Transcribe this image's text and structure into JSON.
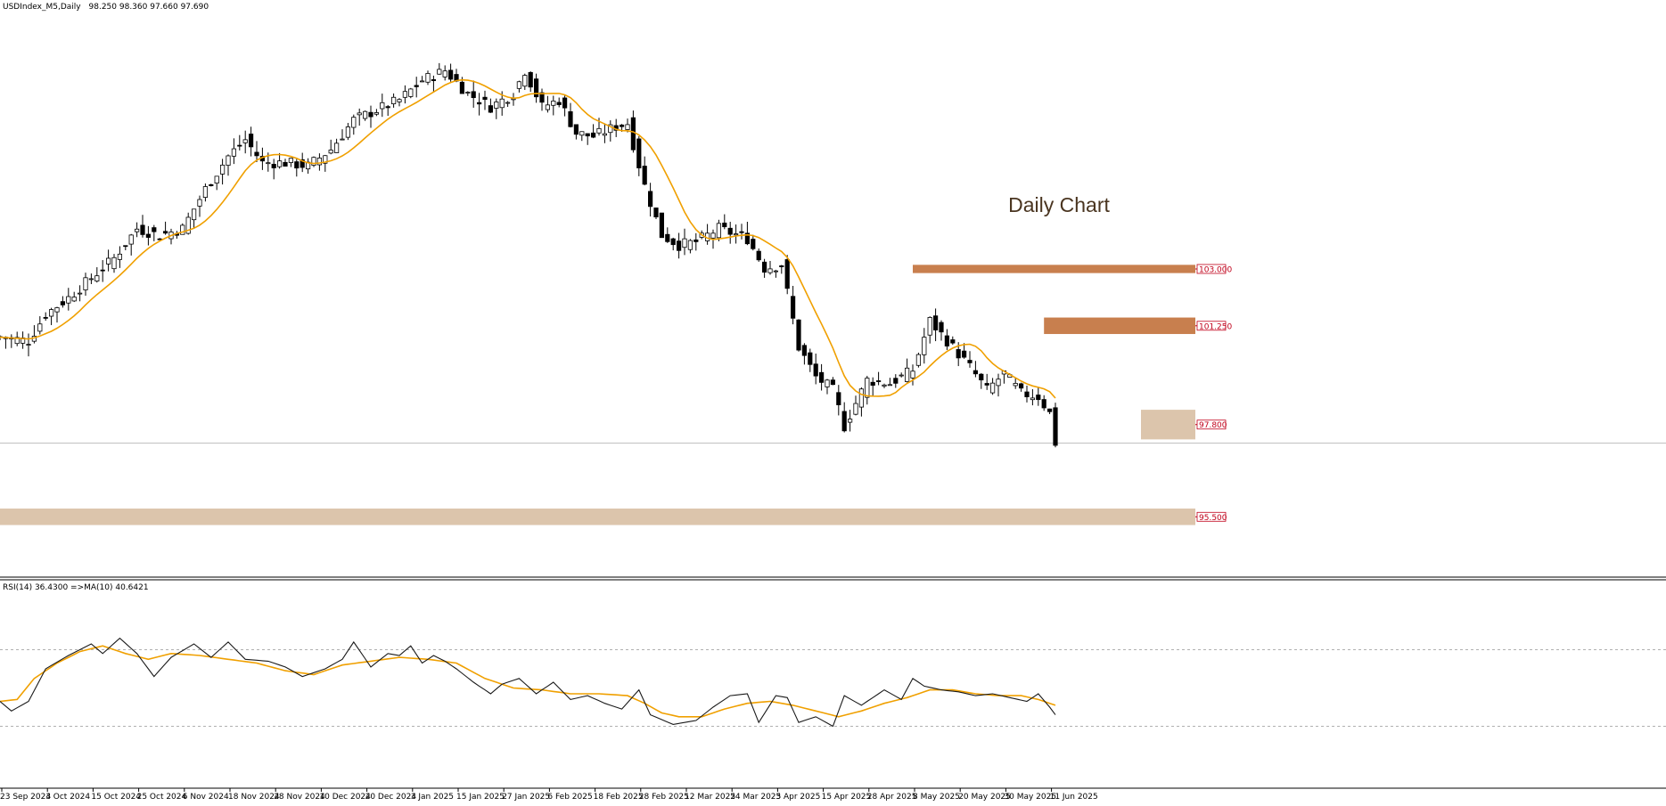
{
  "chart_data": {
    "type": "candlestick",
    "header": {
      "symbol": "USDIndex_M5,Daily",
      "ohlc": "98.250 98.360 97.660 97.690"
    },
    "annotation": "Daily Chart",
    "price_axis_range": [
      93.7,
      110.6
    ],
    "levels": [
      {
        "label": "103.000",
        "color": "#c87f4e",
        "from_x_index": 160,
        "to_x_index": 272,
        "band": [
          103.1,
          102.85
        ]
      },
      {
        "label": "101.250",
        "color": "#c87f4e",
        "from_x_index": 183,
        "to_x_index": 272,
        "band": [
          101.5,
          101.0
        ]
      },
      {
        "label": "97.800",
        "color": "#dcc5ac",
        "from_x_index": 200,
        "to_x_index": 272,
        "band": [
          98.7,
          97.8
        ]
      },
      {
        "label": "95.500",
        "color": "#dcc5ac",
        "from_x_index": 0,
        "to_x_index": 272,
        "band": [
          95.7,
          95.2
        ]
      }
    ],
    "current_price": 97.69,
    "x_ticks": [
      "23 Sep 2024",
      "3 Oct 2024",
      "15 Oct 2024",
      "25 Oct 2024",
      "6 Nov 2024",
      "18 Nov 2024",
      "28 Nov 2024",
      "10 Dec 2024",
      "20 Dec 2024",
      "3 Jan 2025",
      "15 Jan 2025",
      "27 Jan 2025",
      "6 Feb 2025",
      "18 Feb 2025",
      "28 Feb 2025",
      "12 Mar 2025",
      "24 Mar 2025",
      "3 Apr 2025",
      "15 Apr 2025",
      "28 Apr 2025",
      "8 May 2025",
      "20 May 2025",
      "30 May 2025",
      "11 Jun 2025"
    ],
    "x_tick_index": [
      0,
      8,
      16,
      24,
      32,
      40,
      48,
      56,
      64,
      72,
      80,
      88,
      96,
      104,
      112,
      120,
      128,
      136,
      144,
      152,
      160,
      168,
      176,
      184
    ],
    "close_series_anchors": [
      [
        0,
        100.9
      ],
      [
        5,
        100.8
      ],
      [
        8,
        101.6
      ],
      [
        12,
        102.1
      ],
      [
        16,
        102.7
      ],
      [
        20,
        103.3
      ],
      [
        24,
        104.2
      ],
      [
        28,
        104.0
      ],
      [
        32,
        104.2
      ],
      [
        36,
        105.4
      ],
      [
        40,
        106.4
      ],
      [
        43,
        106.9
      ],
      [
        46,
        106.2
      ],
      [
        50,
        106.2
      ],
      [
        54,
        106.1
      ],
      [
        58,
        106.6
      ],
      [
        62,
        107.5
      ],
      [
        66,
        107.8
      ],
      [
        70,
        108.1
      ],
      [
        74,
        108.7
      ],
      [
        78,
        109.0
      ],
      [
        82,
        108.3
      ],
      [
        86,
        107.9
      ],
      [
        90,
        108.3
      ],
      [
        92,
        109.0
      ],
      [
        95,
        107.9
      ],
      [
        98,
        108.1
      ],
      [
        101,
        107.1
      ],
      [
        104,
        107.0
      ],
      [
        108,
        107.3
      ],
      [
        110,
        107.4
      ],
      [
        113,
        105.5
      ],
      [
        116,
        104.0
      ],
      [
        119,
        103.7
      ],
      [
        122,
        103.8
      ],
      [
        126,
        104.2
      ],
      [
        131,
        103.9
      ],
      [
        134,
        103.0
      ],
      [
        137,
        103.1
      ],
      [
        140,
        100.6
      ],
      [
        143,
        99.7
      ],
      [
        146,
        99.3
      ],
      [
        148,
        98.2
      ],
      [
        152,
        99.6
      ],
      [
        156,
        99.5
      ],
      [
        160,
        99.9
      ],
      [
        163,
        101.4
      ],
      [
        166,
        100.8
      ],
      [
        170,
        100.0
      ],
      [
        173,
        99.3
      ],
      [
        176,
        99.8
      ],
      [
        179,
        99.2
      ],
      [
        182,
        99.1
      ],
      [
        184,
        98.6
      ],
      [
        185,
        97.7
      ]
    ],
    "ma_label": "MA",
    "rsi": {
      "label": "RSI(14) 36.4300  =>MA(10) 40.6421",
      "levels": [
        70,
        30
      ],
      "value": 36.43,
      "ma_value": 40.6421,
      "series_anchors": [
        [
          0,
          43
        ],
        [
          2,
          38
        ],
        [
          5,
          43
        ],
        [
          8,
          60
        ],
        [
          12,
          67
        ],
        [
          16,
          73
        ],
        [
          18,
          68
        ],
        [
          21,
          76
        ],
        [
          24,
          68
        ],
        [
          27,
          56
        ],
        [
          30,
          66
        ],
        [
          34,
          73
        ],
        [
          37,
          66
        ],
        [
          40,
          74
        ],
        [
          43,
          65
        ],
        [
          47,
          64
        ],
        [
          50,
          61
        ],
        [
          53,
          56
        ],
        [
          57,
          60
        ],
        [
          60,
          65
        ],
        [
          62,
          74
        ],
        [
          65,
          61
        ],
        [
          68,
          68
        ],
        [
          70,
          67
        ],
        [
          72,
          72
        ],
        [
          74,
          63
        ],
        [
          76,
          67
        ],
        [
          78,
          64
        ],
        [
          80,
          60
        ],
        [
          83,
          53
        ],
        [
          86,
          47
        ],
        [
          88,
          52
        ],
        [
          91,
          55
        ],
        [
          94,
          47
        ],
        [
          97,
          53
        ],
        [
          100,
          44
        ],
        [
          103,
          46
        ],
        [
          106,
          42
        ],
        [
          109,
          39
        ],
        [
          112,
          49
        ],
        [
          114,
          36
        ],
        [
          118,
          31
        ],
        [
          122,
          33
        ],
        [
          125,
          40
        ],
        [
          128,
          46
        ],
        [
          131,
          47
        ],
        [
          133,
          32
        ],
        [
          136,
          46
        ],
        [
          138,
          45
        ],
        [
          140,
          32
        ],
        [
          143,
          35
        ],
        [
          146,
          30
        ],
        [
          148,
          46
        ],
        [
          151,
          41
        ],
        [
          155,
          49
        ],
        [
          158,
          44
        ],
        [
          160,
          55
        ],
        [
          162,
          51
        ],
        [
          165,
          49
        ],
        [
          168,
          48
        ],
        [
          171,
          46
        ],
        [
          174,
          47
        ],
        [
          177,
          45
        ],
        [
          180,
          43
        ],
        [
          182,
          47
        ],
        [
          184,
          40
        ],
        [
          185,
          36
        ]
      ],
      "ma_anchors": [
        [
          0,
          43
        ],
        [
          3,
          44
        ],
        [
          6,
          55
        ],
        [
          10,
          63
        ],
        [
          14,
          69
        ],
        [
          18,
          72
        ],
        [
          22,
          68
        ],
        [
          26,
          65
        ],
        [
          30,
          68
        ],
        [
          35,
          67
        ],
        [
          40,
          65
        ],
        [
          45,
          63
        ],
        [
          50,
          59
        ],
        [
          55,
          57
        ],
        [
          60,
          62
        ],
        [
          65,
          64
        ],
        [
          70,
          66
        ],
        [
          75,
          65
        ],
        [
          80,
          63
        ],
        [
          85,
          55
        ],
        [
          90,
          50
        ],
        [
          95,
          49
        ],
        [
          100,
          47
        ],
        [
          105,
          47
        ],
        [
          110,
          46
        ],
        [
          113,
          42
        ],
        [
          116,
          37
        ],
        [
          119,
          35
        ],
        [
          123,
          35
        ],
        [
          127,
          39
        ],
        [
          131,
          42
        ],
        [
          135,
          43
        ],
        [
          139,
          41
        ],
        [
          143,
          38
        ],
        [
          147,
          35
        ],
        [
          151,
          38
        ],
        [
          155,
          42
        ],
        [
          159,
          45
        ],
        [
          163,
          49
        ],
        [
          167,
          49
        ],
        [
          171,
          47
        ],
        [
          175,
          46
        ],
        [
          179,
          46
        ],
        [
          182,
          44
        ],
        [
          185,
          41
        ]
      ]
    }
  }
}
